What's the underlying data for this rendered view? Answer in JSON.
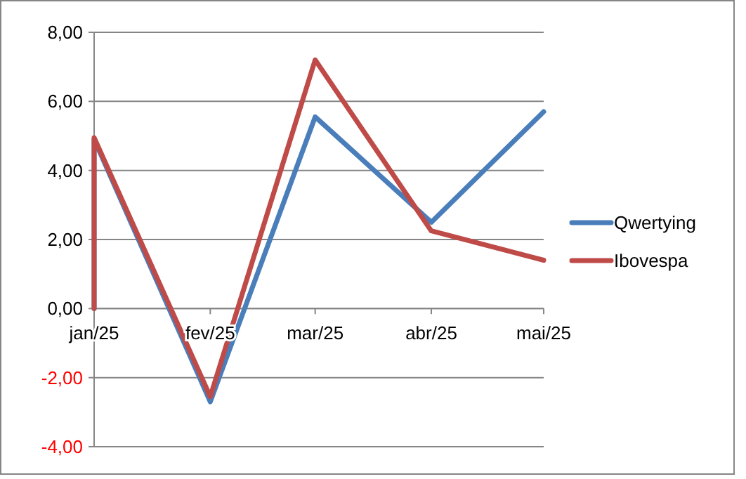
{
  "chart_data": {
    "type": "line",
    "xlim": [
      "2025-01",
      "2025-05"
    ],
    "xticks": [
      {
        "value": "2025-01",
        "label": "jan/25"
      },
      {
        "value": "2025-02",
        "label": "fev/25"
      },
      {
        "value": "2025-03",
        "label": "mar/25"
      },
      {
        "value": "2025-04",
        "label": "abr/25"
      },
      {
        "value": "2025-05",
        "label": "mai/25"
      }
    ],
    "ylim": [
      -4,
      8
    ],
    "yticks": [
      {
        "value": -4,
        "label": "-4,00"
      },
      {
        "value": -2,
        "label": "-2,00"
      },
      {
        "value": 0,
        "label": "0,00"
      },
      {
        "value": 2,
        "label": "2,00"
      },
      {
        "value": 4,
        "label": "4,00"
      },
      {
        "value": 6,
        "label": "6,00"
      },
      {
        "value": 8,
        "label": "8,00"
      }
    ],
    "grid": "y",
    "legend": "right",
    "marker": "none",
    "line_style": "solid",
    "series": [
      {
        "name": "Qwertying",
        "color": "#4a7ebb",
        "x": [
          "2025-01",
          "2025-01",
          "2025-02",
          "2025-03",
          "2025-04",
          "2025-05"
        ],
        "values": [
          0,
          4.9,
          -2.7,
          5.55,
          2.5,
          5.7
        ]
      },
      {
        "name": "Ibovespa",
        "color": "#be4b48",
        "x": [
          "2025-01",
          "2025-01",
          "2025-02",
          "2025-03",
          "2025-04",
          "2025-05"
        ],
        "values": [
          0,
          4.95,
          -2.55,
          7.2,
          2.25,
          1.4
        ]
      }
    ]
  }
}
